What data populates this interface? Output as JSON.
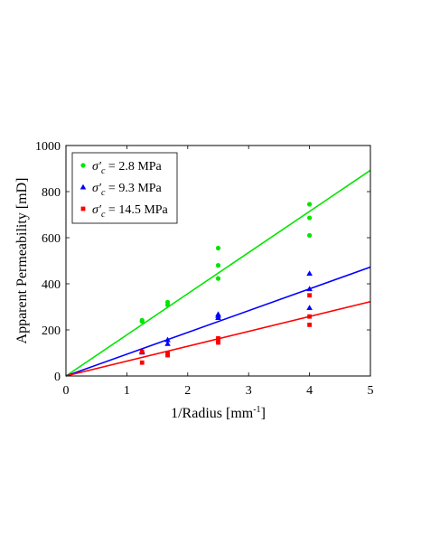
{
  "chart_data": {
    "type": "scatter",
    "title": "",
    "xlabel": "1/Radius [mm",
    "xlabel_superscript": "-1",
    "xlabel_suffix": "]",
    "ylabel": "Apparent Permeability [mD]",
    "xlim": [
      0,
      5
    ],
    "ylim": [
      0,
      1000
    ],
    "xticks": [
      "0",
      "1",
      "2",
      "3",
      "4",
      "5"
    ],
    "yticks": [
      "0",
      "200",
      "400",
      "600",
      "800",
      "1000"
    ],
    "legend_position": "top-left",
    "grid": false,
    "series": [
      {
        "name": "σ′c = 2.8 MPa",
        "legend_symbol": "σ′",
        "legend_subscript": "c",
        "legend_value": " = 2.8 MPa",
        "color": "#00e600",
        "marker": "circle",
        "points": [
          [
            1.25,
            237
          ],
          [
            1.25,
            242
          ],
          [
            1.67,
            308
          ],
          [
            1.67,
            320
          ],
          [
            2.5,
            423
          ],
          [
            2.5,
            480
          ],
          [
            2.5,
            555
          ],
          [
            4.0,
            610
          ],
          [
            4.0,
            686
          ],
          [
            4.0,
            745
          ]
        ],
        "fit_slope": 178.5
      },
      {
        "name": "σ′c = 9.3 MPa",
        "legend_symbol": "σ′",
        "legend_subscript": "c",
        "legend_value": " = 9.3 MPa",
        "color": "#0000ff",
        "marker": "triangle",
        "points": [
          [
            1.25,
            103
          ],
          [
            1.25,
            108
          ],
          [
            1.67,
            140
          ],
          [
            1.67,
            157
          ],
          [
            2.5,
            253
          ],
          [
            2.5,
            262
          ],
          [
            2.5,
            268
          ],
          [
            4.0,
            296
          ],
          [
            4.0,
            378
          ],
          [
            4.0,
            445
          ]
        ],
        "fit_slope": 94.5
      },
      {
        "name": "σ′c = 14.5 MPa",
        "legend_symbol": "σ′",
        "legend_subscript": "c",
        "legend_value": " = 14.5 MPa",
        "color": "#ff0000",
        "marker": "square",
        "points": [
          [
            1.25,
            58
          ],
          [
            1.25,
            105
          ],
          [
            1.67,
            90
          ],
          [
            1.67,
            97
          ],
          [
            2.5,
            145
          ],
          [
            2.5,
            155
          ],
          [
            2.5,
            163
          ],
          [
            4.0,
            222
          ],
          [
            4.0,
            258
          ],
          [
            4.0,
            350
          ]
        ],
        "fit_slope": 64.5
      }
    ]
  }
}
